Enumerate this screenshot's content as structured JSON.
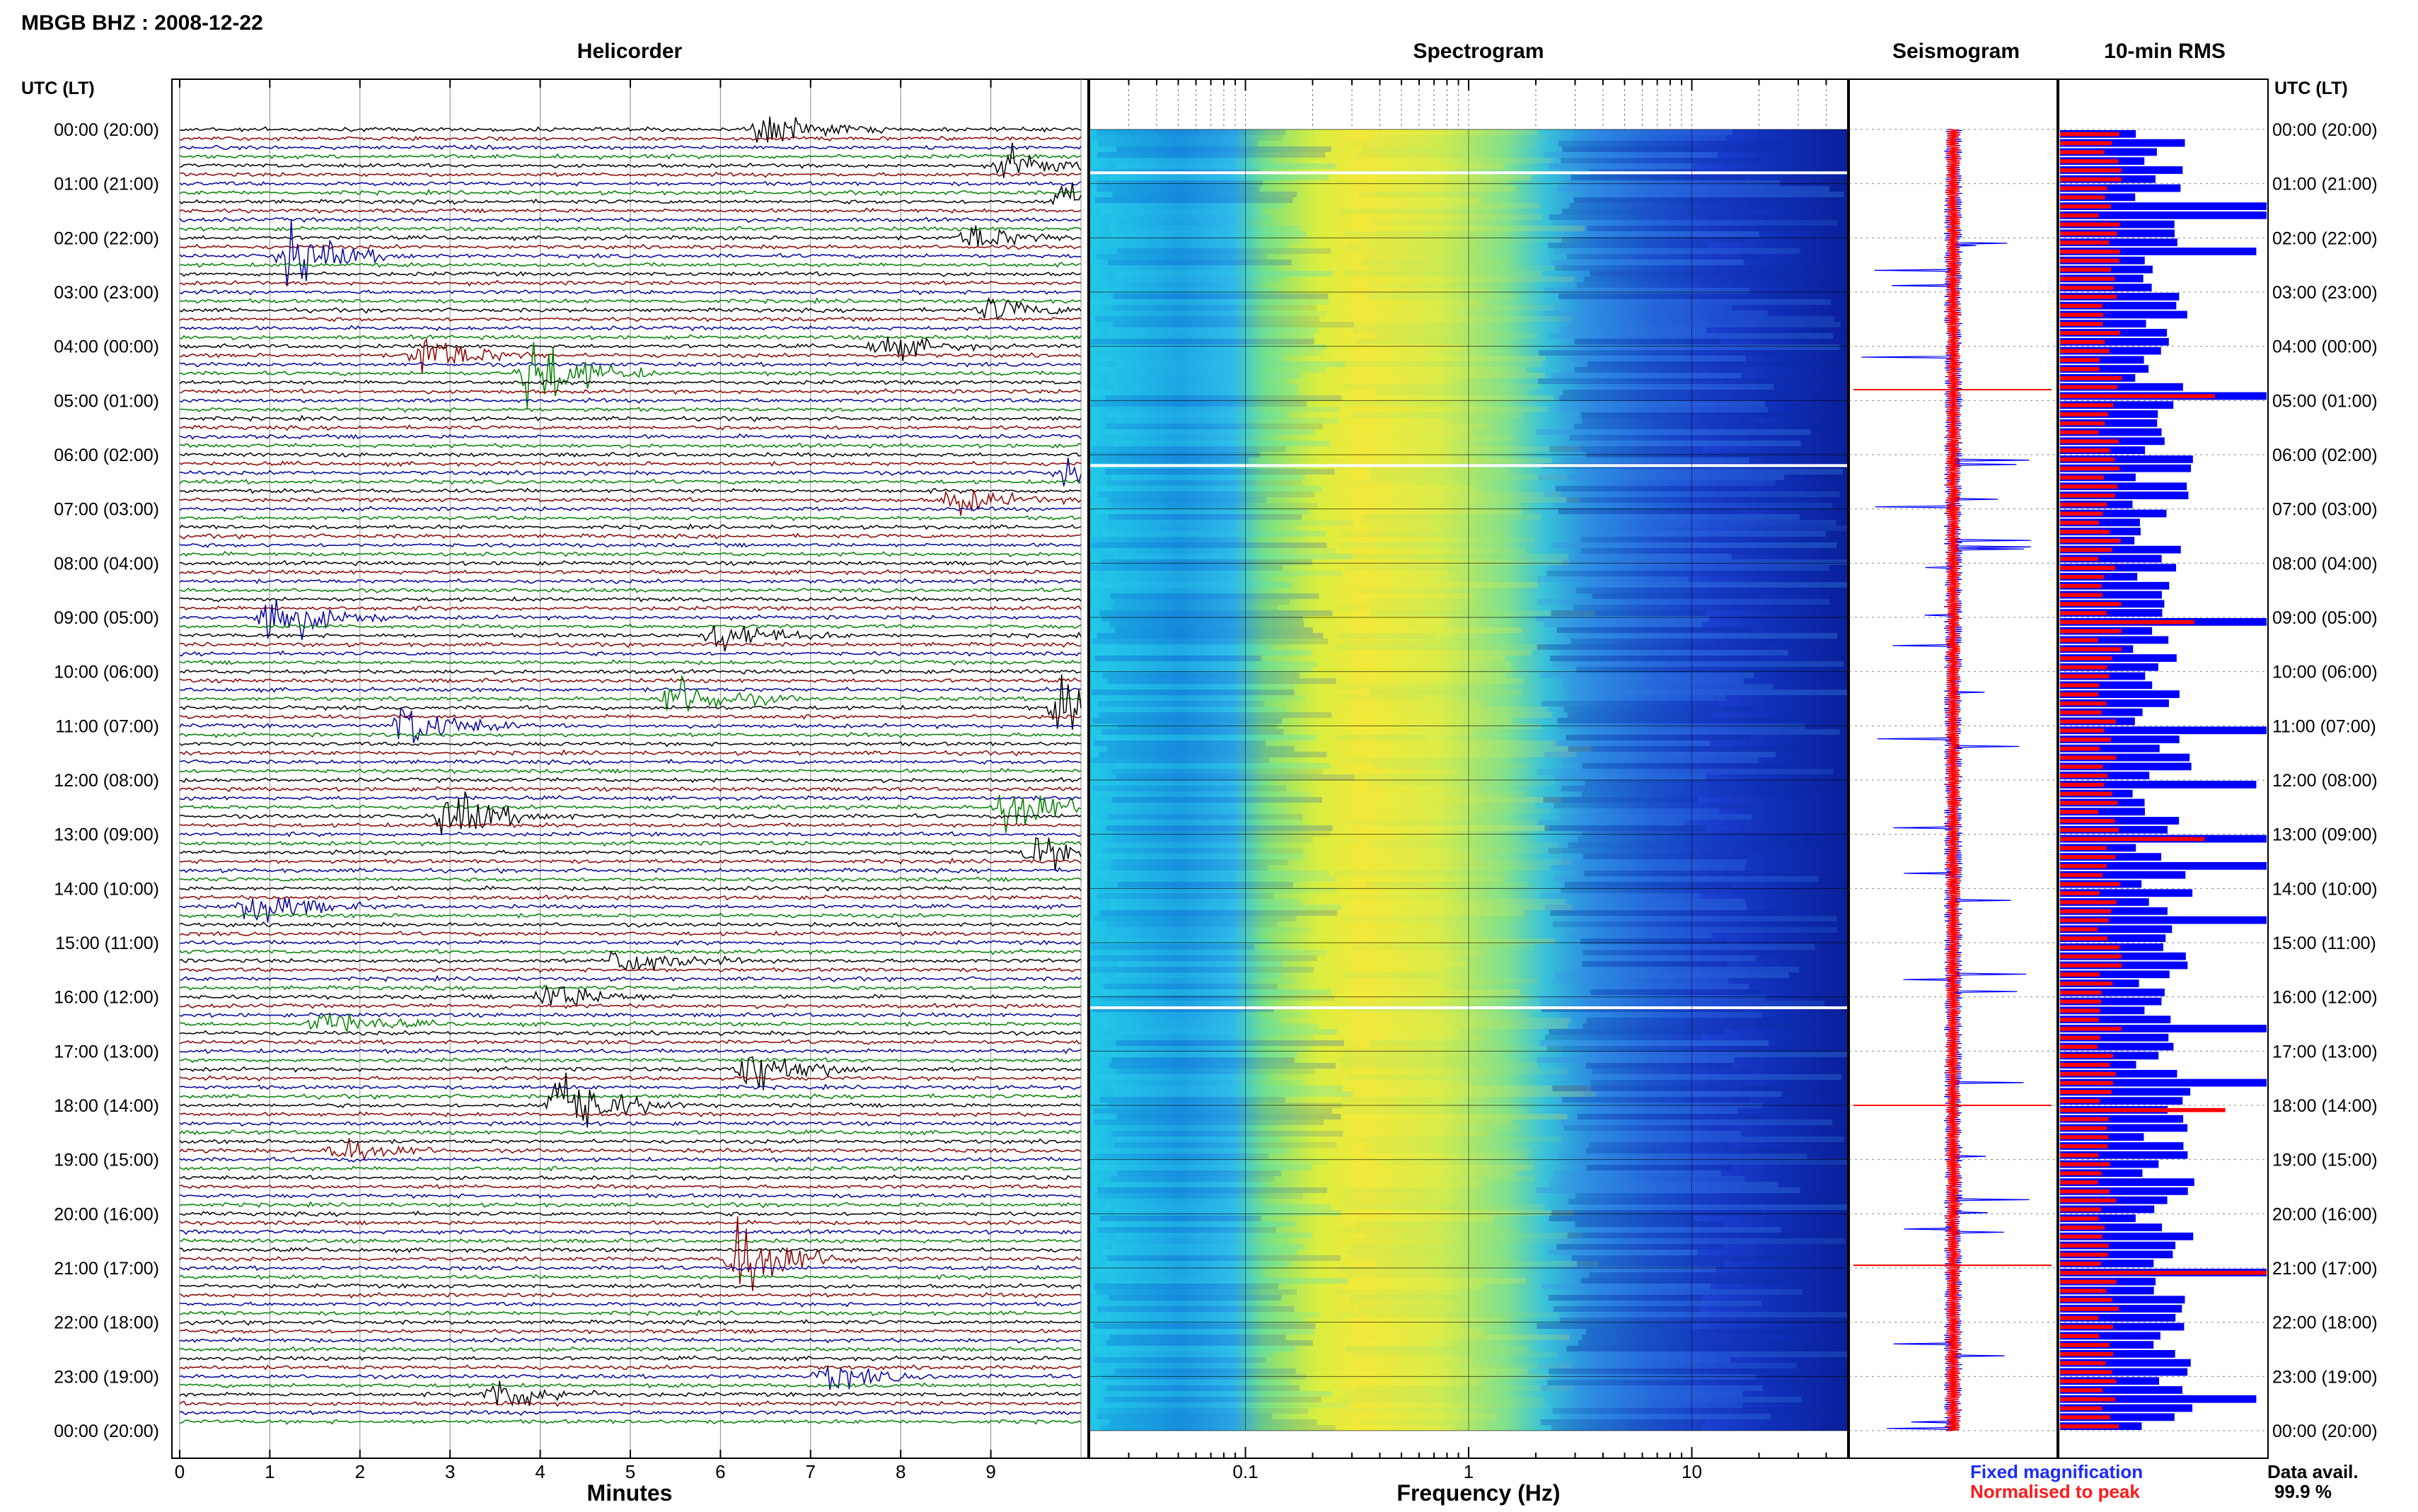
{
  "header": {
    "title": "MBGB BHZ : 2008-12-22",
    "col_label_left": "UTC (LT)",
    "col_label_right": "UTC (LT)"
  },
  "panels": {
    "helicorder": "Helicorder",
    "spectrogram": "Spectrogram",
    "seismogram": "Seismogram",
    "rms": "10-min RMS"
  },
  "axes": {
    "minutes_label": "Minutes",
    "frequency_label": "Frequency (Hz)",
    "minute_ticks": [
      "0",
      "1",
      "2",
      "3",
      "4",
      "5",
      "6",
      "7",
      "8",
      "9"
    ],
    "freq_ticks": [
      "0.1",
      "1",
      "10"
    ]
  },
  "legend": {
    "fixed": "Fixed magnification",
    "normalised": "Normalised to peak",
    "fixed_color": "#1a2bff",
    "normalised_color": "#ff1a1a"
  },
  "availability": {
    "label": "Data avail.",
    "value": "99.9 %"
  },
  "colors": {
    "trace_black": "#000000",
    "trace_red": "#8b0000",
    "trace_blue": "#0000a0",
    "trace_green": "#008000",
    "rms_blue": "#0000ff",
    "rms_red": "#ff0000"
  },
  "chart_data": {
    "type": "heatmap",
    "hour_labels": [
      "00:00 (20:00)",
      "01:00 (21:00)",
      "02:00 (22:00)",
      "03:00 (23:00)",
      "04:00 (00:00)",
      "05:00 (01:00)",
      "06:00 (02:00)",
      "07:00 (03:00)",
      "08:00 (04:00)",
      "09:00 (05:00)",
      "10:00 (06:00)",
      "11:00 (07:00)",
      "12:00 (08:00)",
      "13:00 (09:00)",
      "14:00 (10:00)",
      "15:00 (11:00)",
      "16:00 (12:00)",
      "17:00 (13:00)",
      "18:00 (14:00)",
      "19:00 (15:00)",
      "20:00 (16:00)",
      "21:00 (17:00)",
      "22:00 (18:00)",
      "23:00 (19:00)",
      "00:00 (20:00)"
    ],
    "helicorder": {
      "x_range": [
        0,
        10
      ],
      "lines_per_hour": 6,
      "events": [
        {
          "hour": 0.0,
          "minute": 6.5,
          "amp": 1.2
        },
        {
          "hour": 0.6,
          "minute": 9.2,
          "amp": 1.0
        },
        {
          "hour": 1.3,
          "minute": 9.8,
          "amp": 1.6
        },
        {
          "hour": 2.3,
          "minute": 1.2,
          "amp": 2.0
        },
        {
          "hour": 2.0,
          "minute": 8.8,
          "amp": 0.9
        },
        {
          "hour": 3.3,
          "minute": 9.0,
          "amp": 0.8
        },
        {
          "hour": 4.2,
          "minute": 2.7,
          "amp": 1.5
        },
        {
          "hour": 4.5,
          "minute": 3.9,
          "amp": 2.8
        },
        {
          "hour": 4.0,
          "minute": 7.8,
          "amp": 0.9
        },
        {
          "hour": 6.3,
          "minute": 9.8,
          "amp": 0.8
        },
        {
          "hour": 6.8,
          "minute": 8.6,
          "amp": 0.9
        },
        {
          "hour": 9.0,
          "minute": 1.0,
          "amp": 2.2
        },
        {
          "hour": 9.3,
          "minute": 6.0,
          "amp": 1.1
        },
        {
          "hour": 10.5,
          "minute": 5.5,
          "amp": 1.6
        },
        {
          "hour": 10.7,
          "minute": 9.8,
          "amp": 1.8
        },
        {
          "hour": 11.0,
          "minute": 2.5,
          "amp": 1.6
        },
        {
          "hour": 12.5,
          "minute": 9.2,
          "amp": 2.0
        },
        {
          "hour": 12.7,
          "minute": 3.0,
          "amp": 1.8
        },
        {
          "hour": 13.3,
          "minute": 9.5,
          "amp": 1.2
        },
        {
          "hour": 14.3,
          "minute": 0.8,
          "amp": 1.4
        },
        {
          "hour": 15.4,
          "minute": 4.9,
          "amp": 1.2
        },
        {
          "hour": 16.0,
          "minute": 4.1,
          "amp": 1.0
        },
        {
          "hour": 16.5,
          "minute": 1.6,
          "amp": 1.0
        },
        {
          "hour": 17.4,
          "minute": 6.3,
          "amp": 1.9
        },
        {
          "hour": 18.0,
          "minute": 4.2,
          "amp": 2.7
        },
        {
          "hour": 18.8,
          "minute": 1.8,
          "amp": 0.9
        },
        {
          "hour": 20.8,
          "minute": 6.2,
          "amp": 3.0
        },
        {
          "hour": 23.3,
          "minute": 3.5,
          "amp": 1.3
        },
        {
          "hour": 23.0,
          "minute": 7.2,
          "amp": 0.9
        }
      ]
    },
    "spectrogram": {
      "x_scale": "log",
      "x_range": [
        0.02,
        50
      ],
      "gap_hours": [
        0.8,
        6.2,
        16.2
      ]
    },
    "rms": {
      "bins_per_hour": 6,
      "blue_peaks": [
        {
          "hour": 1.4,
          "value": 1.0
        },
        {
          "hour": 2.2,
          "value": 0.95
        },
        {
          "hour": 4.8,
          "value": 1.0
        },
        {
          "hour": 9.0,
          "value": 1.0
        },
        {
          "hour": 11.0,
          "value": 1.0
        },
        {
          "hour": 12.0,
          "value": 0.95
        },
        {
          "hour": 13.0,
          "value": 1.0
        },
        {
          "hour": 13.5,
          "value": 1.0
        },
        {
          "hour": 14.5,
          "value": 1.0
        },
        {
          "hour": 16.5,
          "value": 1.0
        },
        {
          "hour": 17.5,
          "value": 1.0
        },
        {
          "hour": 21.0,
          "value": 1.0
        },
        {
          "hour": 23.3,
          "value": 0.95
        }
      ],
      "red_peaks": [
        {
          "hour": 4.8,
          "value": 0.75
        },
        {
          "hour": 9.0,
          "value": 0.65
        },
        {
          "hour": 13.0,
          "value": 0.7
        },
        {
          "hour": 18.0,
          "value": 0.8
        },
        {
          "hour": 21.0,
          "value": 1.0
        }
      ]
    }
  }
}
